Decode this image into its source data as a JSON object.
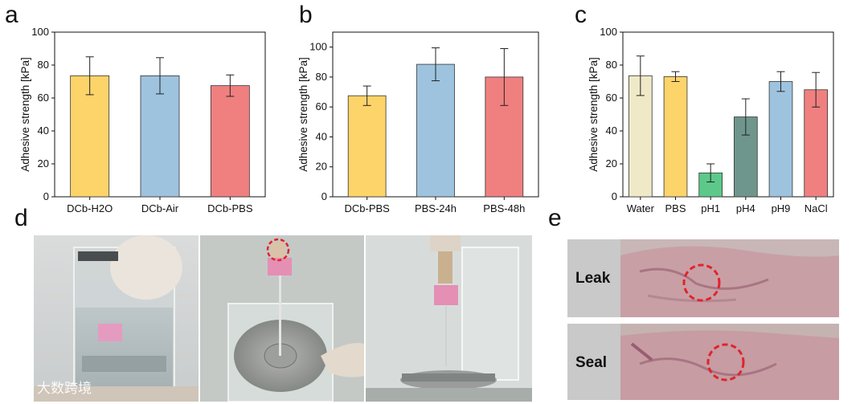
{
  "panels": {
    "a": "a",
    "b": "b",
    "c": "c",
    "d": "d",
    "e": "e"
  },
  "chart_data": [
    {
      "type": "bar",
      "panel": "a",
      "ylabel": "Adhesive strength [kPa]",
      "ylim": [
        0,
        100
      ],
      "yticks": [
        0,
        20,
        40,
        60,
        80,
        100
      ],
      "categories": [
        "DCb-H2O",
        "DCb-Air",
        "DCb-PBS"
      ],
      "values": [
        73.5,
        73.5,
        67.5
      ],
      "errors": [
        11.5,
        11.0,
        6.5
      ],
      "colors": [
        "#fdd46a",
        "#9dc3df",
        "#f08080"
      ]
    },
    {
      "type": "bar",
      "panel": "b",
      "ylabel": "Adhesive strength [kPa]",
      "ylim": [
        0,
        110
      ],
      "yticks": [
        0,
        20,
        40,
        60,
        80,
        100
      ],
      "categories": [
        "DCb-PBS",
        "PBS-24h",
        "PBS-48h"
      ],
      "values": [
        67.5,
        88.5,
        80.0
      ],
      "errors": [
        6.5,
        11.0,
        19.0
      ],
      "colors": [
        "#fdd46a",
        "#9dc3df",
        "#f08080"
      ]
    },
    {
      "type": "bar",
      "panel": "c",
      "ylabel": "Adhesive strength [kPa]",
      "ylim": [
        0,
        100
      ],
      "yticks": [
        0,
        20,
        40,
        60,
        80,
        100
      ],
      "categories": [
        "Water",
        "PBS",
        "pH1",
        "pH4",
        "pH9",
        "NaCl"
      ],
      "values": [
        73.5,
        73.0,
        14.5,
        48.5,
        70.0,
        65.0
      ],
      "errors": [
        12.0,
        3.0,
        5.5,
        11.0,
        6.0,
        10.5
      ],
      "colors": [
        "#efe9c8",
        "#fdd46a",
        "#5cc98a",
        "#6e968c",
        "#9dc3df",
        "#f08080"
      ]
    }
  ],
  "photos": {
    "e_leak_label": "Leak",
    "e_seal_label": "Seal"
  },
  "watermark": {
    "text": "大数跨境",
    "logo": "cloud-logo-icon"
  }
}
